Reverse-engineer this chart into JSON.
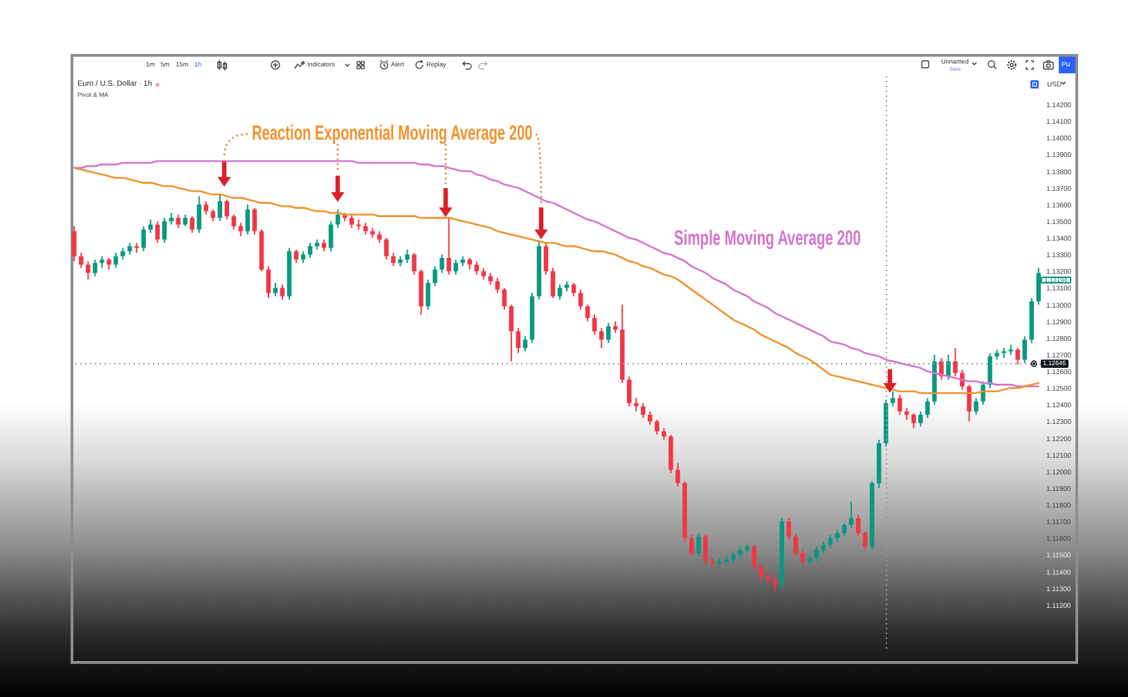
{
  "chart_data": {
    "type": "candlestick",
    "title": "Euro / U.S. Dollar · 1h",
    "subtitle": "Pivot & MA",
    "ylabel": "USD",
    "categories": [
      null,
      null,
      null,
      null,
      null,
      null,
      null,
      null,
      null,
      null,
      null,
      null,
      null,
      null,
      null,
      null,
      null,
      null,
      null,
      null,
      null,
      null,
      null,
      null,
      null,
      null,
      null,
      null,
      null,
      null,
      null,
      null,
      null,
      null,
      null,
      null,
      null,
      null,
      null,
      null,
      null,
      null,
      null,
      null,
      null,
      null,
      null,
      null,
      null,
      null,
      null,
      null,
      null,
      null,
      null,
      null,
      null,
      null,
      null,
      null,
      null,
      null,
      null,
      null,
      null,
      null,
      null,
      null,
      null,
      null,
      null,
      null,
      null,
      null,
      null,
      null,
      null,
      null,
      null,
      null,
      null,
      null,
      null,
      null,
      null,
      null,
      null,
      null,
      null,
      null,
      null,
      null,
      null,
      null,
      null,
      null,
      null,
      null,
      null,
      null,
      null,
      null,
      null,
      null,
      null,
      null,
      null,
      null,
      null,
      null,
      null,
      null,
      null,
      null,
      null,
      null,
      null,
      null,
      null,
      null,
      null,
      null,
      null,
      null,
      null,
      null,
      null,
      null,
      null,
      null,
      null,
      null,
      null,
      null,
      null,
      null,
      null,
      null,
      null,
      null
    ],
    "ohlc": [
      [
        1.1344,
        1.1347,
        1.1326,
        1.1329
      ],
      [
        1.1329,
        1.1331,
        1.1322,
        1.1324
      ],
      [
        1.1324,
        1.1326,
        1.1315,
        1.1319
      ],
      [
        1.1319,
        1.1327,
        1.1317,
        1.1325
      ],
      [
        1.1325,
        1.1329,
        1.1322,
        1.1327
      ],
      [
        1.1327,
        1.1328,
        1.1321,
        1.1324
      ],
      [
        1.1324,
        1.1331,
        1.1322,
        1.1329
      ],
      [
        1.1329,
        1.1334,
        1.1327,
        1.1332
      ],
      [
        1.1332,
        1.1337,
        1.133,
        1.1335
      ],
      [
        1.1335,
        1.1337,
        1.1331,
        1.1334
      ],
      [
        1.1334,
        1.1347,
        1.1332,
        1.1345
      ],
      [
        1.1345,
        1.1351,
        1.1343,
        1.1348
      ],
      [
        1.1348,
        1.135,
        1.1337,
        1.1339
      ],
      [
        1.1339,
        1.1352,
        1.1337,
        1.135
      ],
      [
        1.135,
        1.1355,
        1.1348,
        1.1352
      ],
      [
        1.1352,
        1.1354,
        1.1346,
        1.1348
      ],
      [
        1.1348,
        1.1354,
        1.1347,
        1.1352
      ],
      [
        1.1352,
        1.1353,
        1.1343,
        1.1345
      ],
      [
        1.1345,
        1.1365,
        1.1343,
        1.136
      ],
      [
        1.136,
        1.1362,
        1.1354,
        1.1356
      ],
      [
        1.1356,
        1.1357,
        1.135,
        1.1352
      ],
      [
        1.1352,
        1.1366,
        1.135,
        1.1362
      ],
      [
        1.1362,
        1.1363,
        1.1351,
        1.1353
      ],
      [
        1.1353,
        1.1354,
        1.1345,
        1.1347
      ],
      [
        1.1347,
        1.1349,
        1.1341,
        1.1344
      ],
      [
        1.1344,
        1.136,
        1.1342,
        1.1357
      ],
      [
        1.1357,
        1.1358,
        1.1342,
        1.1344
      ],
      [
        1.1344,
        1.1345,
        1.132,
        1.1321
      ],
      [
        1.1321,
        1.1323,
        1.1304,
        1.1307
      ],
      [
        1.1307,
        1.1313,
        1.1305,
        1.131
      ],
      [
        1.131,
        1.1312,
        1.1303,
        1.1305
      ],
      [
        1.1305,
        1.1334,
        1.1303,
        1.1332
      ],
      [
        1.1332,
        1.1333,
        1.1325,
        1.1327
      ],
      [
        1.1327,
        1.1332,
        1.1325,
        1.133
      ],
      [
        1.133,
        1.1337,
        1.1328,
        1.1335
      ],
      [
        1.1335,
        1.1339,
        1.1333,
        1.1337
      ],
      [
        1.1337,
        1.1339,
        1.1332,
        1.1334
      ],
      [
        1.1334,
        1.135,
        1.1332,
        1.1348
      ],
      [
        1.1348,
        1.1357,
        1.1346,
        1.1354
      ],
      [
        1.1354,
        1.1355,
        1.135,
        1.1352
      ],
      [
        1.1352,
        1.1354,
        1.1346,
        1.1348
      ],
      [
        1.1348,
        1.1351,
        1.1345,
        1.1347
      ],
      [
        1.1347,
        1.1349,
        1.1342,
        1.1344
      ],
      [
        1.1344,
        1.1346,
        1.134,
        1.1342
      ],
      [
        1.1342,
        1.1344,
        1.1337,
        1.1339
      ],
      [
        1.1339,
        1.134,
        1.1327,
        1.1329
      ],
      [
        1.1329,
        1.1331,
        1.1323,
        1.1325
      ],
      [
        1.1325,
        1.1329,
        1.1323,
        1.1327
      ],
      [
        1.1327,
        1.1333,
        1.1325,
        1.133
      ],
      [
        1.133,
        1.1331,
        1.1318,
        1.132
      ],
      [
        1.132,
        1.1321,
        1.1294,
        1.1299
      ],
      [
        1.1299,
        1.1315,
        1.1297,
        1.1313
      ],
      [
        1.1313,
        1.1323,
        1.1311,
        1.1321
      ],
      [
        1.1321,
        1.133,
        1.1319,
        1.1328
      ],
      [
        1.1328,
        1.1352,
        1.1318,
        1.132
      ],
      [
        1.132,
        1.1327,
        1.1318,
        1.1325
      ],
      [
        1.1325,
        1.1329,
        1.1323,
        1.1327
      ],
      [
        1.1327,
        1.1328,
        1.1321,
        1.1324
      ],
      [
        1.1324,
        1.1326,
        1.1318,
        1.132
      ],
      [
        1.132,
        1.1322,
        1.1315,
        1.1317
      ],
      [
        1.1317,
        1.1319,
        1.1312,
        1.1314
      ],
      [
        1.1314,
        1.1316,
        1.1307,
        1.1309
      ],
      [
        1.1309,
        1.131,
        1.1297,
        1.1299
      ],
      [
        1.1299,
        1.13,
        1.1266,
        1.1284
      ],
      [
        1.1284,
        1.1286,
        1.1271,
        1.1274
      ],
      [
        1.1274,
        1.1281,
        1.1272,
        1.1279
      ],
      [
        1.1279,
        1.1307,
        1.1277,
        1.1305
      ],
      [
        1.1305,
        1.1338,
        1.1303,
        1.1335
      ],
      [
        1.1335,
        1.1337,
        1.1318,
        1.132
      ],
      [
        1.132,
        1.1322,
        1.1304,
        1.1305
      ],
      [
        1.1305,
        1.1312,
        1.1303,
        1.131
      ],
      [
        1.131,
        1.1314,
        1.1308,
        1.1312
      ],
      [
        1.1312,
        1.1313,
        1.1305,
        1.1307
      ],
      [
        1.1307,
        1.1309,
        1.1297,
        1.1299
      ],
      [
        1.1299,
        1.13,
        1.129,
        1.1292
      ],
      [
        1.1292,
        1.1294,
        1.1282,
        1.1284
      ],
      [
        1.1284,
        1.1286,
        1.1274,
        1.1279
      ],
      [
        1.1279,
        1.1289,
        1.1277,
        1.1287
      ],
      [
        1.1287,
        1.129,
        1.1283,
        1.1285
      ],
      [
        1.1285,
        1.13,
        1.1253,
        1.1255
      ],
      [
        1.1255,
        1.1257,
        1.1239,
        1.1241
      ],
      [
        1.1241,
        1.1244,
        1.1236,
        1.1239
      ],
      [
        1.1239,
        1.1241,
        1.1232,
        1.1234
      ],
      [
        1.1234,
        1.1236,
        1.1228,
        1.123
      ],
      [
        1.123,
        1.1231,
        1.1222,
        1.1224
      ],
      [
        1.1224,
        1.1226,
        1.1219,
        1.1221
      ],
      [
        1.1221,
        1.1222,
        1.1199,
        1.1201
      ],
      [
        1.1201,
        1.1205,
        1.1191,
        1.1193
      ],
      [
        1.1193,
        1.1194,
        1.1158,
        1.116
      ],
      [
        1.116,
        1.1162,
        1.1149,
        1.1151
      ],
      [
        1.1151,
        1.1163,
        1.1149,
        1.1161
      ],
      [
        1.1161,
        1.1162,
        1.1144,
        1.1146
      ],
      [
        1.1146,
        1.1148,
        1.1142,
        1.1145
      ],
      [
        1.1145,
        1.1148,
        1.1143,
        1.1146
      ],
      [
        1.1146,
        1.1149,
        1.1144,
        1.1147
      ],
      [
        1.1147,
        1.1152,
        1.1145,
        1.115
      ],
      [
        1.115,
        1.1155,
        1.1148,
        1.1153
      ],
      [
        1.1153,
        1.1157,
        1.1151,
        1.1155
      ],
      [
        1.1155,
        1.1156,
        1.1141,
        1.1143
      ],
      [
        1.1143,
        1.1144,
        1.1135,
        1.1137
      ],
      [
        1.1137,
        1.1139,
        1.1133,
        1.1135
      ],
      [
        1.1135,
        1.1137,
        1.1128,
        1.1132
      ],
      [
        1.1132,
        1.1172,
        1.113,
        1.117
      ],
      [
        1.117,
        1.1172,
        1.1159,
        1.1161
      ],
      [
        1.1161,
        1.1163,
        1.1149,
        1.1151
      ],
      [
        1.1151,
        1.1153,
        1.1144,
        1.1146
      ],
      [
        1.1146,
        1.115,
        1.1144,
        1.1148
      ],
      [
        1.1148,
        1.1155,
        1.1146,
        1.1153
      ],
      [
        1.1153,
        1.1158,
        1.1151,
        1.1156
      ],
      [
        1.1156,
        1.1162,
        1.1154,
        1.116
      ],
      [
        1.116,
        1.1165,
        1.1158,
        1.1163
      ],
      [
        1.1163,
        1.1169,
        1.1161,
        1.1168
      ],
      [
        1.1168,
        1.1182,
        1.1166,
        1.1172
      ],
      [
        1.1172,
        1.1174,
        1.1161,
        1.1163
      ],
      [
        1.1163,
        1.1164,
        1.1153,
        1.1155
      ],
      [
        1.1155,
        1.1194,
        1.1153,
        1.1193
      ],
      [
        1.1193,
        1.1219,
        1.119,
        1.1217
      ],
      [
        1.1217,
        1.1243,
        1.1215,
        1.1241
      ],
      [
        1.1241,
        1.1248,
        1.1239,
        1.1244
      ],
      [
        1.1244,
        1.1246,
        1.1234,
        1.1236
      ],
      [
        1.1236,
        1.1238,
        1.1231,
        1.1234
      ],
      [
        1.1234,
        1.1235,
        1.1226,
        1.1229
      ],
      [
        1.1229,
        1.1236,
        1.1227,
        1.1234
      ],
      [
        1.1234,
        1.1244,
        1.1232,
        1.1242
      ],
      [
        1.1242,
        1.127,
        1.124,
        1.1266
      ],
      [
        1.1266,
        1.1268,
        1.1255,
        1.1257
      ],
      [
        1.1257,
        1.127,
        1.1255,
        1.1266
      ],
      [
        1.1266,
        1.1274,
        1.1257,
        1.1259
      ],
      [
        1.1259,
        1.1261,
        1.1249,
        1.1251
      ],
      [
        1.1251,
        1.1252,
        1.123,
        1.1236
      ],
      [
        1.1236,
        1.1244,
        1.1234,
        1.1242
      ],
      [
        1.1242,
        1.1254,
        1.124,
        1.1252
      ],
      [
        1.1252,
        1.1271,
        1.125,
        1.1269
      ],
      [
        1.1269,
        1.1273,
        1.1267,
        1.1271
      ],
      [
        1.1271,
        1.1274,
        1.1268,
        1.1272
      ],
      [
        1.1272,
        1.1276,
        1.127,
        1.1273
      ],
      [
        1.1273,
        1.1274,
        1.1264,
        1.1267
      ],
      [
        1.1267,
        1.1281,
        1.1265,
        1.1279
      ],
      [
        1.1279,
        1.1304,
        1.1277,
        1.1302
      ],
      [
        1.1302,
        1.1322,
        1.13,
        1.1319
      ]
    ],
    "colors": [
      "#f23645",
      "#f23645",
      "#f23645",
      "#089981",
      "#089981",
      "#f23645",
      "#089981",
      "#089981",
      "#089981",
      "#f23645",
      "#089981",
      "#089981",
      "#f23645",
      "#089981",
      "#089981",
      "#f23645",
      "#089981",
      "#f23645",
      "#089981",
      "#f23645",
      "#f23645",
      "#089981",
      "#f23645",
      "#f23645",
      "#f23645",
      "#089981",
      "#f23645",
      "#f23645",
      "#f23645",
      "#089981",
      "#f23645",
      "#089981",
      "#f23645",
      "#089981",
      "#089981",
      "#089981",
      "#f23645",
      "#089981",
      "#089981",
      "#f23645",
      "#f23645",
      "#f23645",
      "#f23645",
      "#f23645",
      "#f23645",
      "#f23645",
      "#f23645",
      "#089981",
      "#089981",
      "#f23645",
      "#f23645",
      "#089981",
      "#089981",
      "#089981",
      "#f23645",
      "#089981",
      "#089981",
      "#f23645",
      "#f23645",
      "#f23645",
      "#f23645",
      "#f23645",
      "#f23645",
      "#f23645",
      "#f23645",
      "#089981",
      "#089981",
      "#089981",
      "#f23645",
      "#f23645",
      "#089981",
      "#089981",
      "#f23645",
      "#f23645",
      "#f23645",
      "#f23645",
      "#f23645",
      "#089981",
      "#f23645",
      "#f23645",
      "#f23645",
      "#f23645",
      "#f23645",
      "#f23645",
      "#f23645",
      "#f23645",
      "#f23645",
      "#f23645",
      "#f23645",
      "#f23645",
      "#089981",
      "#f23645",
      "#f23645",
      "#089981",
      "#089981",
      "#089981",
      "#089981",
      "#089981",
      "#f23645",
      "#f23645",
      "#f23645",
      "#f23645",
      "#089981",
      "#f23645",
      "#f23645",
      "#f23645",
      "#089981",
      "#089981",
      "#089981",
      "#089981",
      "#089981",
      "#089981",
      "#089981",
      "#f23645",
      "#f23645",
      "#089981",
      "#089981",
      "#089981",
      "#089981",
      "#f23645",
      "#f23645",
      "#f23645",
      "#089981",
      "#089981",
      "#089981",
      "#f23645",
      "#089981",
      "#f23645",
      "#f23645",
      "#f23645",
      "#089981",
      "#089981",
      "#089981",
      "#089981",
      "#089981",
      "#089981",
      "#f23645",
      "#089981",
      "#089981",
      "#089981"
    ],
    "series": [
      {
        "name": "Simple Moving Average 200",
        "type": "line",
        "color": "#d474cf",
        "values": [
          1.1382,
          1.1382,
          1.1383,
          1.1383,
          1.1384,
          1.1384,
          1.1384,
          1.1385,
          1.1385,
          1.1385,
          1.1385,
          1.1385,
          1.1386,
          1.1386,
          1.1386,
          1.1386,
          1.1386,
          1.1386,
          1.1386,
          1.1386,
          1.1386,
          1.1386,
          1.1386,
          1.1386,
          1.1386,
          1.1386,
          1.1386,
          1.1386,
          1.1386,
          1.1386,
          1.1386,
          1.1386,
          1.1386,
          1.1386,
          1.1386,
          1.1386,
          1.1386,
          1.1386,
          1.1386,
          1.1386,
          1.1386,
          1.1385,
          1.1385,
          1.1385,
          1.1385,
          1.1385,
          1.1385,
          1.1385,
          1.1385,
          1.1385,
          1.1384,
          1.1384,
          1.1383,
          1.1383,
          1.1382,
          1.1381,
          1.138,
          1.138,
          1.1378,
          1.1377,
          1.1375,
          1.1374,
          1.1372,
          1.1371,
          1.137,
          1.1368,
          1.1366,
          1.1364,
          1.1362,
          1.1361,
          1.1359,
          1.1357,
          1.1355,
          1.1353,
          1.1351,
          1.135,
          1.1348,
          1.1346,
          1.1344,
          1.1342,
          1.134,
          1.1339,
          1.1337,
          1.1335,
          1.1333,
          1.1331,
          1.133,
          1.1328,
          1.1326,
          1.1323,
          1.1321,
          1.1319,
          1.1316,
          1.1314,
          1.1312,
          1.1309,
          1.1307,
          1.1305,
          1.1302,
          1.13,
          1.1298,
          1.1295,
          1.1293,
          1.1291,
          1.1289,
          1.1287,
          1.1285,
          1.1283,
          1.1281,
          1.1278,
          1.1277,
          1.1276,
          1.1274,
          1.1273,
          1.1271,
          1.127,
          1.1269,
          1.1267,
          1.1266,
          1.1265,
          1.1264,
          1.1263,
          1.1262,
          1.126,
          1.1259,
          1.1258,
          1.1257,
          1.1256,
          1.1255,
          1.1254,
          1.1254,
          1.1253,
          1.1253,
          1.1252,
          1.1252,
          1.1252,
          1.1251,
          1.1251,
          1.1251,
          1.1251
        ]
      },
      {
        "name": "Reaction Exponential Moving Average 200",
        "type": "line",
        "color": "#f0922e",
        "values": [
          1.1382,
          1.1381,
          1.138,
          1.1379,
          1.1378,
          1.1377,
          1.1376,
          1.1376,
          1.1375,
          1.1374,
          1.1373,
          1.1373,
          1.1372,
          1.1371,
          1.1371,
          1.137,
          1.1369,
          1.1368,
          1.1368,
          1.1367,
          1.1366,
          1.1366,
          1.1365,
          1.1364,
          1.1364,
          1.1363,
          1.1362,
          1.1361,
          1.1361,
          1.136,
          1.1359,
          1.1359,
          1.1358,
          1.1358,
          1.1357,
          1.1356,
          1.1356,
          1.1355,
          1.1355,
          1.1354,
          1.1354,
          1.1354,
          1.1354,
          1.1354,
          1.1353,
          1.1353,
          1.1353,
          1.1353,
          1.1353,
          1.1353,
          1.1352,
          1.1352,
          1.1352,
          1.1352,
          1.1352,
          1.1351,
          1.135,
          1.1349,
          1.1348,
          1.1347,
          1.1346,
          1.1344,
          1.1343,
          1.1342,
          1.1341,
          1.134,
          1.1339,
          1.1338,
          1.1337,
          1.1337,
          1.1336,
          1.1335,
          1.1335,
          1.1334,
          1.1333,
          1.1332,
          1.1332,
          1.1331,
          1.133,
          1.1328,
          1.1326,
          1.1325,
          1.1323,
          1.1322,
          1.132,
          1.1318,
          1.1317,
          1.1315,
          1.1312,
          1.1309,
          1.1306,
          1.1303,
          1.13,
          1.1297,
          1.1294,
          1.1291,
          1.1289,
          1.1287,
          1.1285,
          1.1282,
          1.128,
          1.1278,
          1.1276,
          1.1274,
          1.1271,
          1.1269,
          1.1267,
          1.1264,
          1.1261,
          1.1258,
          1.1257,
          1.1256,
          1.1255,
          1.1254,
          1.1253,
          1.1252,
          1.1251,
          1.125,
          1.1249,
          1.1248,
          1.1248,
          1.1248,
          1.1247,
          1.1247,
          1.1247,
          1.1247,
          1.1247,
          1.1247,
          1.1247,
          1.1247,
          1.1247,
          1.1248,
          1.1248,
          1.1248,
          1.1249,
          1.125,
          1.125,
          1.1251,
          1.1252,
          1.1253
        ]
      }
    ],
    "ylim": [
      1.1093,
      1.1437
    ],
    "yticks": [
      {
        "value": 1.112,
        "label": "1.11200"
      },
      {
        "value": 1.113,
        "label": "1.11300"
      },
      {
        "value": 1.114,
        "label": "1.11400"
      },
      {
        "value": 1.115,
        "label": "1.11500"
      },
      {
        "value": 1.116,
        "label": "1.11600"
      },
      {
        "value": 1.117,
        "label": "1.11700"
      },
      {
        "value": 1.118,
        "label": "1.11800"
      },
      {
        "value": 1.119,
        "label": "1.11900"
      },
      {
        "value": 1.12,
        "label": "1.12000"
      },
      {
        "value": 1.121,
        "label": "1.12100"
      },
      {
        "value": 1.122,
        "label": "1.12200"
      },
      {
        "value": 1.123,
        "label": "1.12300"
      },
      {
        "value": 1.124,
        "label": "1.12400"
      },
      {
        "value": 1.125,
        "label": "1.12500"
      },
      {
        "value": 1.126,
        "label": "1.12600"
      },
      {
        "value": 1.127,
        "label": "1.12700"
      },
      {
        "value": 1.128,
        "label": "1.12800"
      },
      {
        "value": 1.129,
        "label": "1.12900"
      },
      {
        "value": 1.13,
        "label": "1.13000"
      },
      {
        "value": 1.131,
        "label": "1.13100"
      },
      {
        "value": 1.132,
        "label": "1.13200"
      },
      {
        "value": 1.133,
        "label": "1.13300"
      },
      {
        "value": 1.134,
        "label": "1.13400"
      },
      {
        "value": 1.135,
        "label": "1.13500"
      },
      {
        "value": 1.136,
        "label": "1.13600"
      },
      {
        "value": 1.137,
        "label": "1.13700"
      },
      {
        "value": 1.138,
        "label": "1.13800"
      },
      {
        "value": 1.139,
        "label": "1.13900"
      },
      {
        "value": 1.14,
        "label": "1.14000"
      },
      {
        "value": 1.141,
        "label": "1.14100"
      },
      {
        "value": 1.142,
        "label": "1.14200"
      }
    ],
    "ref_lines": [
      {
        "axis": "y",
        "value": 1.12646,
        "label": "1.12646",
        "color": "#9598a1",
        "line_style": "dotted"
      }
    ],
    "annotations": [
      "1m",
      "5m",
      "15m",
      "1h",
      "Indicators",
      "Alert",
      "Replay",
      "Unnamed",
      "Save",
      "Pu",
      "1.13194"
    ],
    "grid": false
  }
}
